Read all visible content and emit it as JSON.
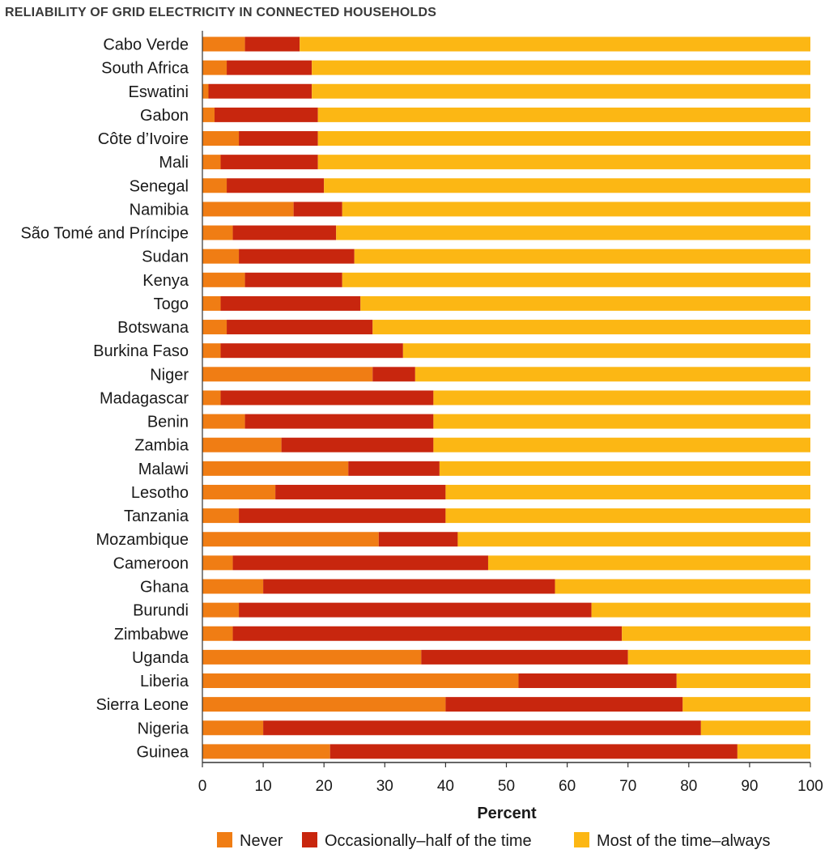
{
  "chart_data": {
    "type": "bar",
    "orientation": "horizontal",
    "stacked": true,
    "title": "RELIABILITY OF GRID ELECTRICITY IN CONNECTED HOUSEHOLDS",
    "xlabel": "Percent",
    "ylabel": "",
    "xlim": [
      0,
      100
    ],
    "xticks": [
      0,
      10,
      20,
      30,
      40,
      50,
      60,
      70,
      80,
      90,
      100
    ],
    "grid": false,
    "legend_position": "bottom",
    "categories": [
      "Cabo Verde",
      "South Africa",
      "Eswatini",
      "Gabon",
      "Côte d’Ivoire",
      "Mali",
      "Senegal",
      "Namibia",
      "São Tomé and Príncipe",
      "Sudan",
      "Kenya",
      "Togo",
      "Botswana",
      "Burkina Faso",
      "Niger",
      "Madagascar",
      "Benin",
      "Zambia",
      "Malawi",
      "Lesotho",
      "Tanzania",
      "Mozambique",
      "Cameroon",
      "Ghana",
      "Burundi",
      "Zimbabwe",
      "Uganda",
      "Liberia",
      "Sierra Leone",
      "Nigeria",
      "Guinea"
    ],
    "series": [
      {
        "name": "Never",
        "color": "#f07d14",
        "values": [
          7,
          4,
          1,
          2,
          6,
          3,
          4,
          15,
          5,
          6,
          7,
          3,
          4,
          3,
          28,
          3,
          7,
          13,
          24,
          12,
          6,
          29,
          5,
          10,
          6,
          5,
          36,
          52,
          40,
          10,
          21
        ]
      },
      {
        "name": "Occasionally–half of the time",
        "color": "#c8260e",
        "values": [
          9,
          14,
          17,
          17,
          13,
          16,
          16,
          8,
          17,
          19,
          16,
          23,
          24,
          30,
          7,
          35,
          31,
          25,
          15,
          28,
          34,
          13,
          42,
          48,
          58,
          64,
          34,
          26,
          39,
          72,
          67
        ]
      },
      {
        "name": "Most of the time–always",
        "color": "#fcb714",
        "values": [
          84,
          82,
          82,
          81,
          81,
          81,
          80,
          77,
          78,
          75,
          77,
          74,
          72,
          67,
          65,
          62,
          62,
          62,
          61,
          60,
          60,
          58,
          53,
          42,
          36,
          31,
          30,
          22,
          21,
          18,
          12
        ]
      }
    ]
  }
}
